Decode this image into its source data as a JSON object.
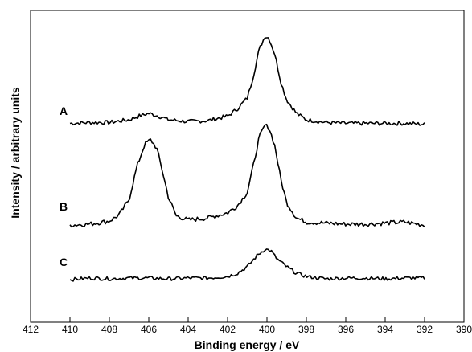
{
  "chart_data": {
    "type": "line",
    "title": "",
    "xlabel": "Binding energy / eV",
    "ylabel": "Intensity / arbitrary units",
    "xlim": [
      412,
      390
    ],
    "x_reversed": true,
    "x_ticks": [
      "412",
      "410",
      "408",
      "406",
      "404",
      "402",
      "400",
      "398",
      "396",
      "394",
      "392",
      "390"
    ],
    "y_ticks_shown": false,
    "grid": false,
    "legend": "none",
    "line_color": "#000000",
    "series": [
      {
        "name": "A",
        "points": [
          [
            410,
            0.04
          ],
          [
            409,
            0.05
          ],
          [
            408,
            0.05
          ],
          [
            407,
            0.08
          ],
          [
            406.5,
            0.12
          ],
          [
            406,
            0.15
          ],
          [
            405.5,
            0.12
          ],
          [
            405,
            0.08
          ],
          [
            404,
            0.06
          ],
          [
            403,
            0.07
          ],
          [
            402,
            0.12
          ],
          [
            401.5,
            0.2
          ],
          [
            401,
            0.32
          ],
          [
            400.7,
            0.55
          ],
          [
            400.4,
            0.85
          ],
          [
            400.1,
            1.0
          ],
          [
            399.9,
            0.98
          ],
          [
            399.6,
            0.8
          ],
          [
            399.3,
            0.5
          ],
          [
            399,
            0.3
          ],
          [
            398.5,
            0.15
          ],
          [
            398,
            0.08
          ],
          [
            397,
            0.05
          ],
          [
            396,
            0.04
          ],
          [
            395,
            0.04
          ],
          [
            394,
            0.04
          ],
          [
            393,
            0.04
          ],
          [
            392,
            0.03
          ]
        ]
      },
      {
        "name": "B",
        "points": [
          [
            410,
            0.03
          ],
          [
            409,
            0.04
          ],
          [
            408,
            0.07
          ],
          [
            407.5,
            0.13
          ],
          [
            407,
            0.28
          ],
          [
            406.6,
            0.6
          ],
          [
            406.2,
            0.82
          ],
          [
            405.9,
            0.86
          ],
          [
            405.6,
            0.78
          ],
          [
            405.3,
            0.55
          ],
          [
            405,
            0.3
          ],
          [
            404.6,
            0.12
          ],
          [
            404,
            0.08
          ],
          [
            403,
            0.1
          ],
          [
            402,
            0.15
          ],
          [
            401.5,
            0.22
          ],
          [
            401,
            0.35
          ],
          [
            400.7,
            0.6
          ],
          [
            400.4,
            0.88
          ],
          [
            400.1,
            1.0
          ],
          [
            399.9,
            0.98
          ],
          [
            399.6,
            0.8
          ],
          [
            399.3,
            0.48
          ],
          [
            399,
            0.25
          ],
          [
            398.5,
            0.1
          ],
          [
            398,
            0.06
          ],
          [
            397,
            0.05
          ],
          [
            396,
            0.04
          ],
          [
            395,
            0.04
          ],
          [
            394,
            0.05
          ],
          [
            393,
            0.06
          ],
          [
            392,
            0.03
          ]
        ]
      },
      {
        "name": "C",
        "points": [
          [
            410,
            0.02
          ],
          [
            409,
            0.04
          ],
          [
            408,
            0.03
          ],
          [
            407,
            0.04
          ],
          [
            406,
            0.04
          ],
          [
            405,
            0.03
          ],
          [
            404,
            0.04
          ],
          [
            403,
            0.04
          ],
          [
            402,
            0.06
          ],
          [
            401.5,
            0.1
          ],
          [
            401,
            0.18
          ],
          [
            400.5,
            0.32
          ],
          [
            400.1,
            0.4
          ],
          [
            399.8,
            0.38
          ],
          [
            399.5,
            0.28
          ],
          [
            399,
            0.18
          ],
          [
            398.5,
            0.1
          ],
          [
            398,
            0.06
          ],
          [
            397,
            0.03
          ],
          [
            396,
            0.04
          ],
          [
            395,
            0.04
          ],
          [
            394,
            0.03
          ],
          [
            393,
            0.04
          ],
          [
            392,
            0.04
          ]
        ]
      }
    ]
  }
}
